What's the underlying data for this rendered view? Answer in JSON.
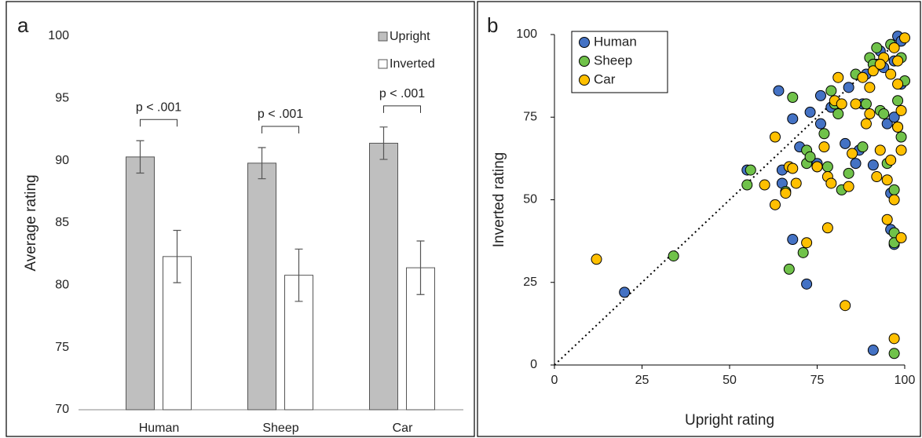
{
  "chart_data": [
    {
      "type": "bar",
      "panel": "a",
      "ylabel": "Average rating",
      "categories": [
        "Human",
        "Sheep",
        "Car"
      ],
      "series": [
        {
          "name": "Upright",
          "color": "#bfbfbf",
          "values": [
            90.3,
            89.8,
            91.4
          ],
          "errors": [
            1.3,
            1.25,
            1.3
          ]
        },
        {
          "name": "Inverted",
          "color": "#ffffff",
          "values": [
            82.3,
            80.8,
            81.4
          ],
          "errors": [
            2.1,
            2.1,
            2.15
          ]
        }
      ],
      "annotations": [
        "p < .001",
        "p < .001",
        "p < .001"
      ],
      "ylim": [
        70,
        100
      ],
      "yticks": [
        70,
        75,
        80,
        85,
        90,
        95,
        100
      ],
      "legend": "top-right"
    },
    {
      "type": "scatter",
      "panel": "b",
      "xlabel": "Upright rating",
      "ylabel": "Inverted rating",
      "series": [
        {
          "name": "Human",
          "color": "#4472c4",
          "x": [
            20,
            55,
            64,
            65,
            65,
            68,
            68,
            70,
            72,
            73,
            73,
            75,
            76,
            76,
            79,
            83,
            84,
            86,
            87,
            88,
            89,
            91,
            91,
            92,
            93,
            95,
            96,
            96,
            97,
            97,
            98,
            99,
            99,
            97,
            94
          ],
          "values": [
            22,
            59,
            83,
            59,
            55,
            38,
            74.5,
            66,
            24.5,
            76.5,
            62.5,
            61,
            81.5,
            73,
            78,
            67,
            84,
            61,
            65,
            79,
            88,
            4.5,
            60.5,
            91,
            95,
            73,
            52,
            41,
            36.5,
            75,
            99.5,
            98,
            85,
            92,
            90
          ]
        },
        {
          "name": "Sheep",
          "color": "#70c24a",
          "x": [
            34,
            55,
            56,
            66,
            67,
            68,
            71,
            72,
            72,
            73,
            75,
            77,
            78,
            79,
            80,
            81,
            82,
            84,
            86,
            88,
            89,
            90,
            91,
            92,
            93,
            94,
            95,
            96,
            97,
            97,
            97,
            97,
            98,
            98,
            99,
            99,
            100
          ],
          "values": [
            33,
            54.5,
            59,
            52.5,
            29,
            81,
            34,
            65,
            61,
            63,
            60,
            70,
            60,
            83,
            79,
            76,
            53,
            58,
            88,
            66,
            79,
            93,
            91,
            96,
            77,
            76,
            61,
            97,
            3.5,
            40,
            37,
            53,
            72,
            80,
            69,
            93,
            86
          ]
        },
        {
          "name": "Car",
          "color": "#ffc000",
          "x": [
            12,
            60,
            63,
            63,
            66,
            67,
            68,
            69,
            72,
            75,
            77,
            78,
            78,
            79,
            80,
            81,
            82,
            83,
            84,
            85,
            86,
            88,
            89,
            90,
            91,
            92,
            93,
            94,
            95,
            95,
            96,
            97,
            97,
            97,
            98,
            98,
            99,
            99,
            99,
            100,
            98,
            96,
            93,
            90
          ],
          "values": [
            32,
            54.5,
            48.5,
            69,
            52,
            60,
            59.5,
            55,
            37,
            60,
            66,
            41.5,
            57,
            55,
            80,
            87,
            79,
            18,
            54,
            64,
            79,
            87,
            73,
            76,
            89,
            57,
            65,
            93,
            44,
            56,
            62,
            50,
            8,
            96,
            72,
            85,
            38.5,
            65,
            77,
            99,
            92,
            88,
            91,
            84
          ]
        }
      ],
      "xlim": [
        0,
        100
      ],
      "ylim": [
        0,
        100
      ],
      "xticks": [
        0,
        25,
        50,
        75,
        100
      ],
      "yticks": [
        0,
        25,
        50,
        75,
        100
      ],
      "legend": "top-left"
    }
  ]
}
